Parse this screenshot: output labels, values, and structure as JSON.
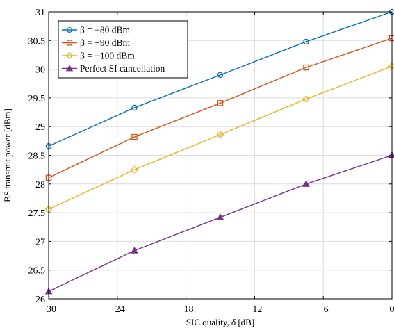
{
  "chart_data": {
    "type": "line",
    "xlabel": "SIC quality, δ [dB]",
    "ylabel": "BS transmit power [dBm]",
    "xlim": [
      -30,
      0
    ],
    "ylim": [
      26,
      31
    ],
    "xticks": [
      -30,
      -24,
      -18,
      -12,
      -6,
      0
    ],
    "xtick_labels": [
      "−30",
      "−24",
      "−18",
      "−12",
      "−6",
      "0"
    ],
    "yticks": [
      26,
      26.5,
      27,
      27.5,
      28,
      28.5,
      29,
      29.5,
      30,
      30.5,
      31
    ],
    "ytick_labels": [
      "26",
      "26.5",
      "27",
      "27.5",
      "28",
      "28.5",
      "29",
      "29.5",
      "30",
      "30.5",
      "31"
    ],
    "grid": true,
    "legend_position": "top-left",
    "x": [
      -30,
      -22.5,
      -15,
      -7.5,
      0
    ],
    "series": [
      {
        "name": "β = −80 dBm",
        "color": "#0072BD",
        "marker": "circle",
        "values": [
          28.66,
          29.33,
          29.9,
          30.48,
          31.0
        ]
      },
      {
        "name": "β = −90 dBm",
        "color": "#D95319",
        "marker": "square",
        "values": [
          28.11,
          28.82,
          29.41,
          30.03,
          30.54
        ]
      },
      {
        "name": "β = −100 dBm",
        "color": "#EDB120",
        "marker": "diamond",
        "values": [
          27.56,
          28.25,
          28.86,
          29.48,
          30.05
        ]
      },
      {
        "name": "Perfect SI cancellation",
        "color": "#7E2F8E",
        "marker": "triangle",
        "values": [
          26.13,
          26.84,
          27.42,
          28.0,
          28.5
        ]
      }
    ]
  }
}
